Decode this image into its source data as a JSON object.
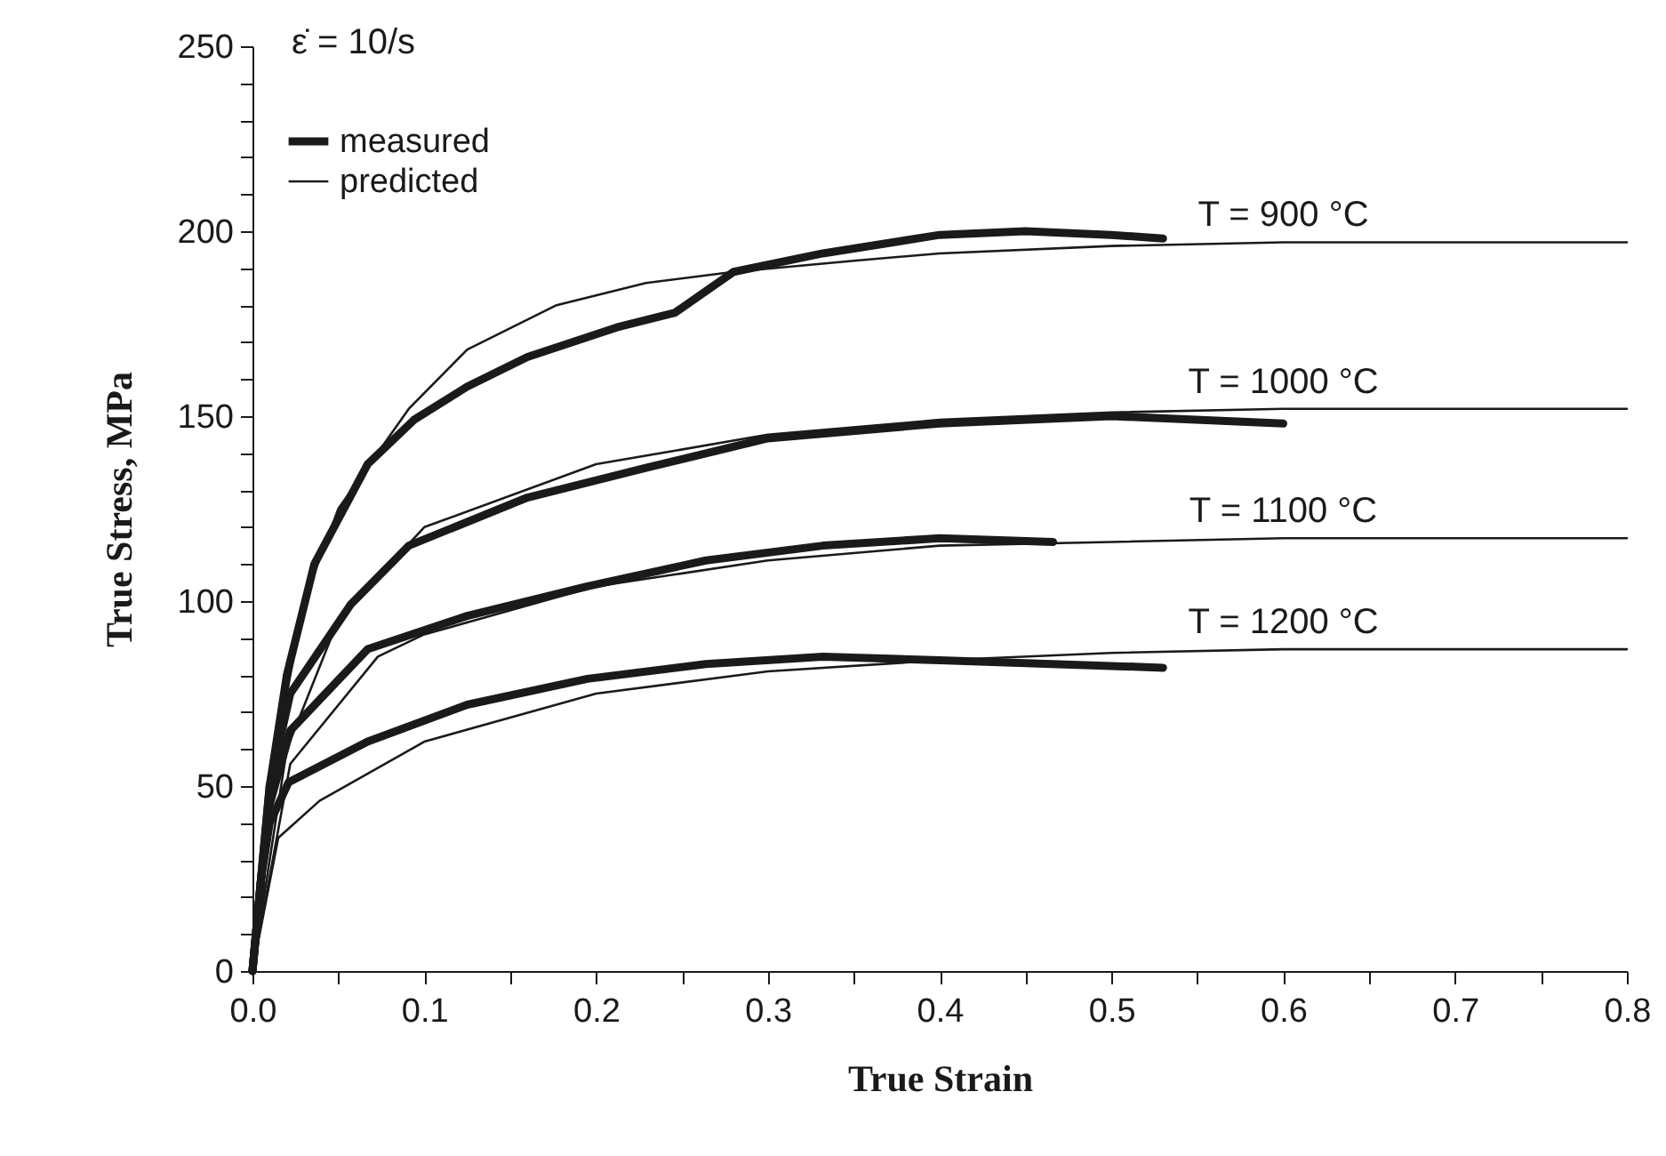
{
  "chart_data": {
    "type": "line",
    "xlabel": "True Strain",
    "ylabel": "True Stress, MPa",
    "xlim": [
      0,
      0.8
    ],
    "ylim": [
      0,
      250
    ],
    "xticks": [
      {
        "value": 0,
        "label": "0.0"
      },
      {
        "value": 0.05,
        "label": null
      },
      0.1,
      {
        "value": 0.15,
        "label": null
      },
      0.2,
      {
        "value": 0.25,
        "label": null
      },
      0.3,
      {
        "value": 0.35,
        "label": null
      },
      0.4,
      {
        "value": 0.45,
        "label": null
      },
      0.5,
      {
        "value": 0.55,
        "label": null
      },
      0.6,
      {
        "value": 0.65,
        "label": null
      },
      0.7,
      {
        "value": 0.75,
        "label": null
      },
      0.8
    ],
    "yticks": [
      0,
      {
        "value": 10,
        "label": null
      },
      {
        "value": 20,
        "label": null
      },
      {
        "value": 30,
        "label": null
      },
      {
        "value": 40,
        "label": null
      },
      50,
      {
        "value": 60,
        "label": null
      },
      {
        "value": 70,
        "label": null
      },
      {
        "value": 80,
        "label": null
      },
      {
        "value": 90,
        "label": null
      },
      100,
      {
        "value": 110,
        "label": null
      },
      {
        "value": 120,
        "label": null
      },
      {
        "value": 130,
        "label": null
      },
      {
        "value": 140,
        "label": null
      },
      150,
      {
        "value": 160,
        "label": null
      },
      {
        "value": 170,
        "label": null
      },
      {
        "value": 180,
        "label": null
      },
      {
        "value": 190,
        "label": null
      },
      200,
      {
        "value": 210,
        "label": null
      },
      {
        "value": 220,
        "label": null
      },
      {
        "value": 230,
        "label": null
      },
      {
        "value": 240,
        "label": null
      },
      250
    ],
    "grid": false,
    "legend": "top left",
    "line_style": "solid",
    "series": [
      {
        "name": "measured",
        "color": "#1a1a1a",
        "marker": "circle",
        "x": [
          0,
          0.005,
          0.01,
          0.02,
          0.036,
          0.067,
          0.094,
          0.125,
          0.16,
          0.212,
          0.246,
          0.28,
          0.332,
          0.4,
          0.45,
          0.5,
          0.53
        ],
        "values": [
          0,
          25,
          50,
          80,
          110,
          137,
          149,
          158,
          166,
          174,
          178,
          189,
          194,
          199,
          200,
          199,
          198
        ]
      },
      {
        "name": "predicted",
        "color": "#1a1a1a",
        "marker": "none",
        "x": [
          0,
          0.01,
          0.03,
          0.05,
          0.091,
          0.125,
          0.177,
          0.229,
          0.28,
          0.35,
          0.4,
          0.5,
          0.6,
          0.7,
          0.8
        ],
        "values": [
          0,
          50,
          100,
          125,
          152,
          168,
          180,
          186,
          189,
          192,
          194,
          196,
          197,
          197,
          197
        ]
      },
      {
        "color": "#1a1a1a",
        "marker": "circle",
        "x": [
          0,
          0.005,
          0.01,
          0.022,
          0.057,
          0.091,
          0.16,
          0.229,
          0.3,
          0.4,
          0.5,
          0.6
        ],
        "values": [
          0,
          25,
          50,
          75,
          99,
          115,
          128,
          136,
          144,
          148,
          150,
          148
        ]
      },
      {
        "color": "#1a1a1a",
        "marker": "none",
        "x": [
          0,
          0.02,
          0.05,
          0.1,
          0.2,
          0.3,
          0.4,
          0.5,
          0.6,
          0.7,
          0.8
        ],
        "values": [
          0,
          60,
          95,
          120,
          137,
          145,
          149,
          151,
          152,
          152,
          152
        ]
      },
      {
        "color": "#1a1a1a",
        "marker": "circle",
        "x": [
          0,
          0.005,
          0.01,
          0.022,
          0.067,
          0.125,
          0.195,
          0.264,
          0.332,
          0.4,
          0.466
        ],
        "values": [
          0,
          25,
          45,
          65,
          87,
          96,
          104,
          111,
          115,
          117,
          116
        ]
      },
      {
        "color": "#1a1a1a",
        "marker": "none",
        "x": [
          0,
          0.022,
          0.073,
          0.1,
          0.2,
          0.3,
          0.4,
          0.5,
          0.6,
          0.8
        ],
        "values": [
          0,
          56,
          85,
          91,
          104,
          111,
          115,
          116,
          117,
          117
        ]
      },
      {
        "color": "#1a1a1a",
        "marker": "circle",
        "x": [
          0,
          0.005,
          0.01,
          0.021,
          0.067,
          0.125,
          0.195,
          0.264,
          0.332,
          0.4,
          0.53
        ],
        "values": [
          0,
          25,
          40,
          51,
          62,
          72,
          79,
          83,
          85,
          84,
          82
        ]
      },
      {
        "color": "#1a1a1a",
        "marker": "none",
        "x": [
          0,
          0.015,
          0.039,
          0.1,
          0.2,
          0.3,
          0.4,
          0.5,
          0.6,
          0.8
        ],
        "values": [
          0,
          36,
          46,
          62,
          75,
          81,
          84,
          86,
          87,
          87
        ]
      }
    ],
    "annotations": [
      "ε̇ = 10/s",
      {
        "text": "T = 900 °C",
        "y": 197
      },
      {
        "text": "T = 1000 °C",
        "y": 152
      },
      {
        "text": "T = 1100 °C",
        "y": 117
      },
      {
        "text": "T = 1200 °C",
        "y": 87
      }
    ]
  }
}
